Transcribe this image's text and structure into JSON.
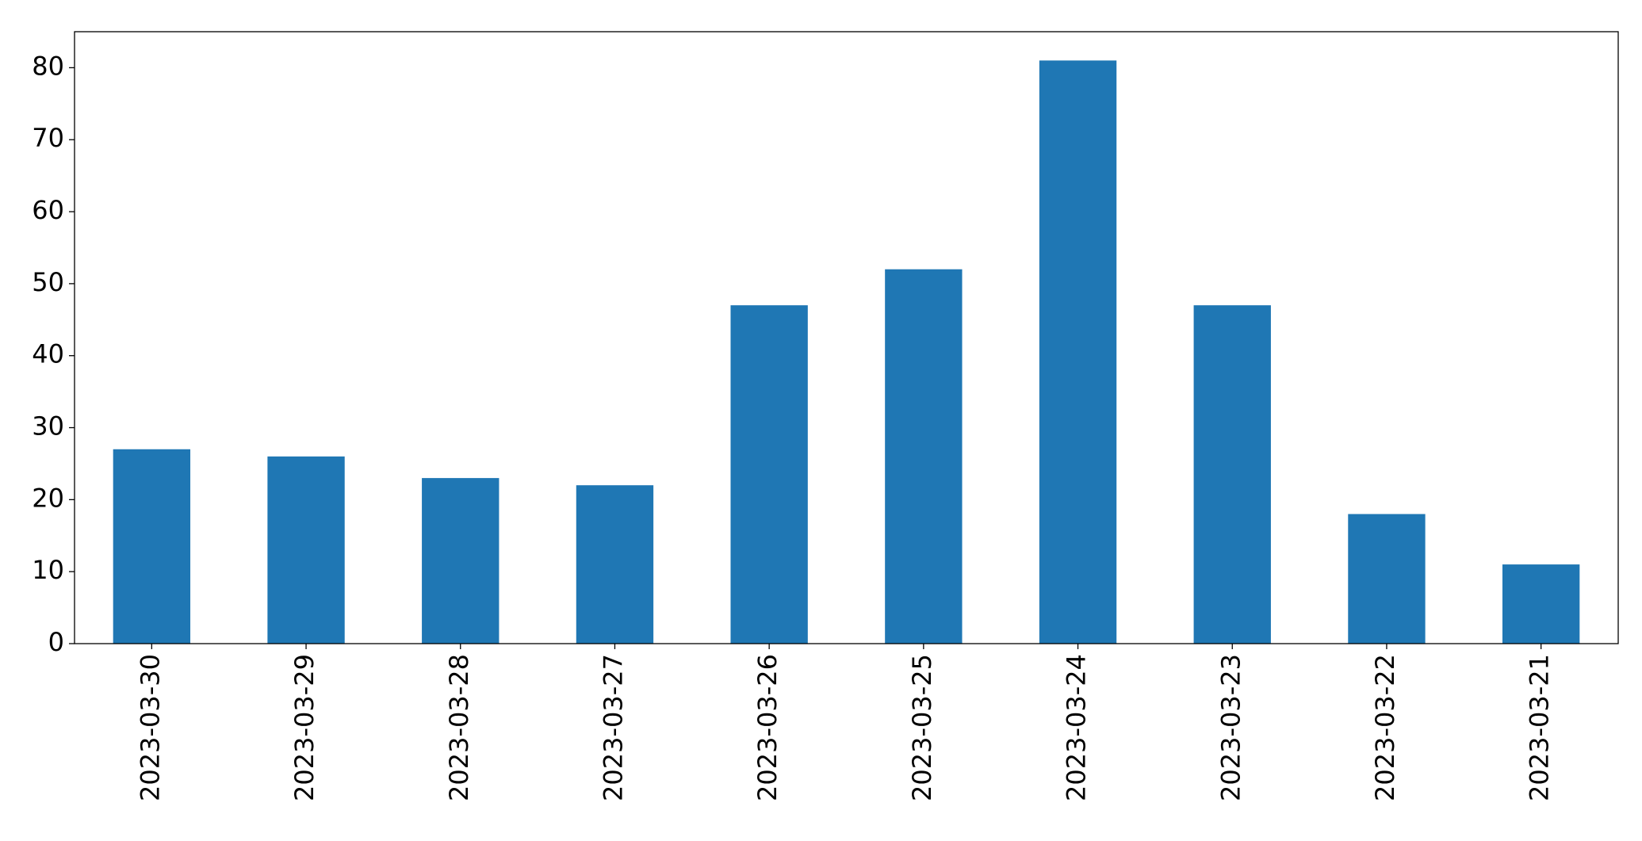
{
  "chart_data": {
    "type": "bar",
    "categories": [
      "2023-03-30",
      "2023-03-29",
      "2023-03-28",
      "2023-03-27",
      "2023-03-26",
      "2023-03-25",
      "2023-03-24",
      "2023-03-23",
      "2023-03-22",
      "2023-03-21"
    ],
    "values": [
      27,
      26,
      23,
      22,
      47,
      52,
      81,
      47,
      18,
      11
    ],
    "color": "#1f77b4",
    "ylim": [
      0,
      85
    ],
    "yticks": [
      0,
      10,
      20,
      30,
      40,
      50,
      60,
      70,
      80
    ],
    "grid": false
  }
}
